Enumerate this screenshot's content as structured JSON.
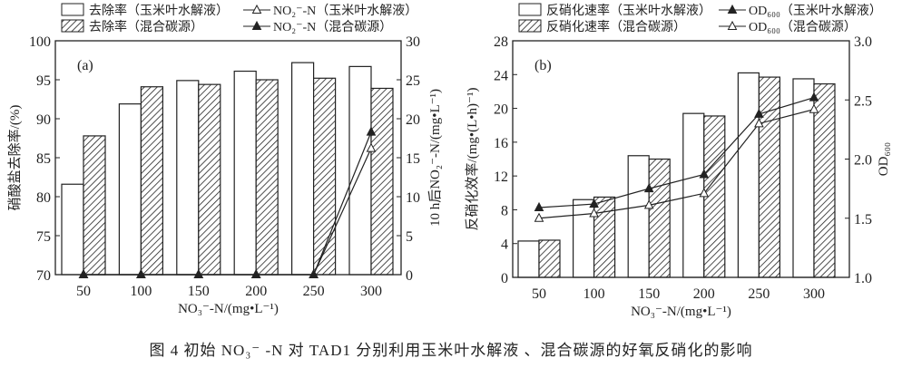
{
  "caption": "图 4   初始 NO₃⁻ -N 对 TAD1 分别利用玉米叶水解液 、混合碳源的好氧反硝化的影响",
  "colors": {
    "axis": "#222222",
    "bar_fill": "#ffffff",
    "hatch": "#222222"
  },
  "chart_data": [
    {
      "type": "bar+line",
      "panel_label": "(a)",
      "categories": [
        "50",
        "100",
        "150",
        "200",
        "250",
        "300"
      ],
      "xlabel": "NO₃⁻-N/(mg•L⁻¹)",
      "ylabel": "硝酸盐去除率/(%)",
      "ylim": [
        70,
        100
      ],
      "yticks": [
        70,
        75,
        80,
        85,
        90,
        95,
        100
      ],
      "y2label": "10 h后NO₂⁻-N/(mg•L⁻¹)",
      "y2lim": [
        0,
        30
      ],
      "y2ticks": [
        0,
        5,
        10,
        15,
        20,
        25,
        30
      ],
      "legend_placement": "top",
      "bars": [
        {
          "name": "去除率（玉米叶水解液）",
          "pattern": "open",
          "values": [
            81.6,
            91.9,
            94.9,
            96.1,
            97.2,
            96.7
          ]
        },
        {
          "name": "去除率（混合碳源）",
          "pattern": "hatched",
          "values": [
            87.8,
            94.1,
            94.4,
            95.0,
            95.2,
            93.9
          ]
        }
      ],
      "lines": [
        {
          "name": "NO₂⁻-N（玉米叶水解液）",
          "marker": "open-triangle",
          "axis": "right",
          "values": [
            0,
            0,
            0,
            0,
            0,
            16.2
          ]
        },
        {
          "name": "NO₂⁻-N（混合碳源）",
          "marker": "filled-triangle",
          "axis": "right",
          "values": [
            0,
            0,
            0,
            0,
            0,
            18.3
          ]
        }
      ]
    },
    {
      "type": "bar+line",
      "panel_label": "(b)",
      "categories": [
        "50",
        "100",
        "150",
        "200",
        "250",
        "300"
      ],
      "xlabel": "NO₃⁻-N/(mg•L⁻¹)",
      "ylabel": "反硝化效率/(mg•(L•h)⁻¹)",
      "ylim": [
        0,
        28
      ],
      "yticks": [
        0,
        4,
        8,
        12,
        16,
        20,
        24,
        28
      ],
      "y2label": "OD₆₀₀",
      "y2lim": [
        1.0,
        3.0
      ],
      "y2ticks": [
        "1.0",
        "1.5",
        "2.0",
        "2.5",
        "3.0"
      ],
      "legend_placement": "top",
      "bars": [
        {
          "name": "反硝化速率（玉米叶水解液）",
          "pattern": "open",
          "values": [
            4.3,
            9.2,
            14.4,
            19.4,
            24.2,
            23.5
          ]
        },
        {
          "name": "反硝化速率（混合碳源）",
          "pattern": "hatched",
          "values": [
            4.4,
            9.5,
            14.0,
            19.1,
            23.7,
            22.9
          ]
        }
      ],
      "lines": [
        {
          "name": "OD₆₀₀（玉米叶水解液）",
          "marker": "filled-triangle",
          "axis": "right",
          "values": [
            1.59,
            1.62,
            1.75,
            1.87,
            2.38,
            2.52
          ]
        },
        {
          "name": "OD₆₀₀（混合碳源）",
          "marker": "open-triangle",
          "axis": "right",
          "values": [
            1.5,
            1.54,
            1.61,
            1.71,
            2.3,
            2.42
          ]
        }
      ]
    }
  ]
}
